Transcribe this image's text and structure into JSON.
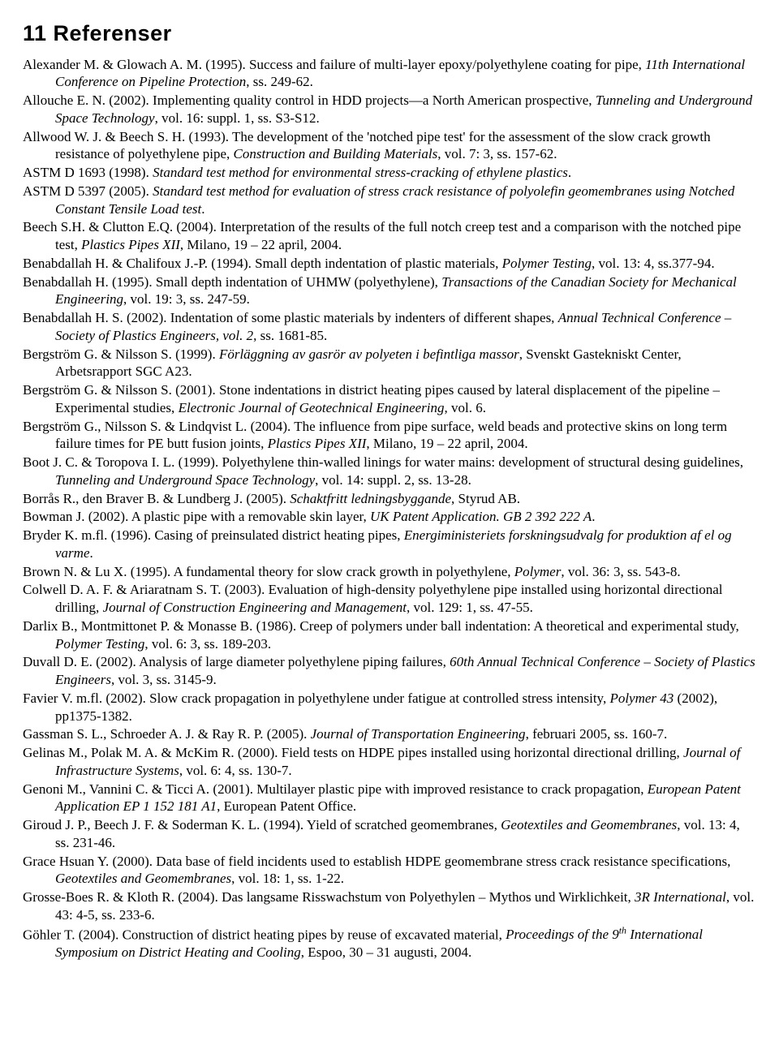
{
  "heading": "11  Referenser",
  "references": [
    {
      "html": "Alexander M. & Glowach A. M. (1995). Success and failure of multi-layer epoxy/polyethylene coating for pipe, <em>11th International Conference on Pipeline Protection</em>, ss. 249-62."
    },
    {
      "html": "Allouche E. N. (2002). Implementing quality control in HDD projects—a North American prospective, <em>Tunneling and Underground Space Technology</em>, vol. 16: suppl. 1, ss. S3-S12."
    },
    {
      "html": "Allwood W. J. & Beech S. H. (1993). The development of the 'notched pipe test' for the assessment of the slow crack growth resistance of polyethylene pipe, <em>Construction and Building Materials</em>, vol. 7: 3, ss. 157-62."
    },
    {
      "html": "ASTM D 1693 (1998). <em>Standard test method for environmental stress-cracking of ethylene plastics</em>."
    },
    {
      "html": "ASTM D 5397 (2005). <em>Standard test method for evaluation of stress crack resistance of polyolefin geomembranes using Notched Constant Tensile Load test</em>."
    },
    {
      "html": "Beech S.H. & Clutton E.Q. (2004). Interpretation of the results of the full notch creep test and a comparison with the notched pipe test, <em>Plastics Pipes XII</em>, Milano, 19 – 22 april, 2004."
    },
    {
      "html": "Benabdallah H. & Chalifoux J.-P. (1994). Small depth indentation of plastic materials, <em>Polymer Testing</em>, vol. 13: 4, ss.377-94."
    },
    {
      "html": "Benabdallah H. (1995). Small depth indentation of UHMW (polyethylene), <em>Transactions of the Canadian Society for Mechanical Engineering</em>, vol. 19: 3, ss. 247-59."
    },
    {
      "html": "Benabdallah H. S. (2002). Indentation of some plastic materials by indenters of different shapes, <em>Annual Technical Conference – Society of Plastics Engineers, vol. 2</em>, ss. 1681-85."
    },
    {
      "html": "Bergström G. & Nilsson S. (1999). <em>Förläggning av gasrör av polyeten i befintliga massor</em>, Svenskt Gastekniskt Center, Arbetsrapport SGC A23."
    },
    {
      "html": "Bergström G. & Nilsson S. (2001). Stone indentations in district heating pipes caused by lateral displacement of the pipeline – Experimental studies, <em>Electronic Journal of Geotechnical Engineering</em>, vol. 6."
    },
    {
      "html": "Bergström G., Nilsson S. & Lindqvist L. (2004). The influence from pipe surface, weld beads and protective skins on long term failure times for PE butt fusion joints, <em>Plastics Pipes XII</em>, Milano, 19 – 22 april, 2004."
    },
    {
      "html": "Boot J. C. & Toropova I. L. (1999). Polyethylene thin-walled linings for water mains: development of structural desing guidelines, <em>Tunneling and Underground Space Technology</em>, vol. 14: suppl. 2, ss. 13-28."
    },
    {
      "html": "Borrås R., den Braver B. & Lundberg J. (2005). <em>Schaktfritt ledningsbyggande</em>, Styrud AB."
    },
    {
      "html": "Bowman J. (2002). A plastic pipe with a removable skin layer, <em>UK Patent Application. GB 2 392 222 A</em>."
    },
    {
      "html": "Bryder K. m.fl. (1996). Casing of preinsulated district heating pipes, <em>Energiministeriets forskningsudvalg for produktion af el og varme</em>."
    },
    {
      "html": "Brown N. & Lu X. (1995). A fundamental theory for slow crack growth in polyethylene, <em>Polymer</em>, vol. 36: 3, ss. 543-8."
    },
    {
      "html": "Colwell D. A. F. & Ariaratnam S. T. (2003). Evaluation of high-density polyethylene pipe installed using horizontal directional drilling, <em>Journal of Construction Engineering and Management</em>, vol. 129: 1, ss. 47-55."
    },
    {
      "html": "Darlix B., Montmittonet P. & Monasse B. (1986). Creep of polymers under ball indentation: A theoretical and experimental study, <em>Polymer Testing</em>, vol. 6: 3, ss. 189-203."
    },
    {
      "html": "Duvall D. E. (2002). Analysis of large diameter polyethylene piping failures, <em>60th Annual Technical Conference – Society of Plastics Engineers</em>, vol. 3, ss. 3145-9."
    },
    {
      "html": "Favier V. m.fl. (2002). Slow crack propagation in polyethylene under fatigue at controlled stress intensity, <em>Polymer 43</em> (2002), pp1375-1382."
    },
    {
      "html": "Gassman S. L., Schroeder A. J. & Ray R. P. (2005). <em>Journal of Transportation Engineering</em>, februari 2005, ss. 160-7."
    },
    {
      "html": "Gelinas M., Polak M. A. & McKim R. (2000). Field tests on HDPE pipes installed using horizontal directional drilling, <em>Journal of Infrastructure Systems</em>, vol. 6: 4, ss. 130-7."
    },
    {
      "html": "Genoni M., Vannini C. & Ticci A. (2001). Multilayer plastic pipe with improved resistance to crack propagation, <em>European Patent Application EP 1 152 181 A1</em>, European Patent Office."
    },
    {
      "html": "Giroud J. P., Beech J. F. & Soderman K. L. (1994). Yield of scratched geomembranes, <em>Geotextiles and Geomembranes</em>, vol. 13: 4, ss. 231-46."
    },
    {
      "html": "Grace Hsuan Y. (2000). Data base of field incidents used to establish HDPE geomembrane stress crack resistance specifications, <em>Geotextiles and Geomembranes</em>, vol. 18: 1, ss. 1-22."
    },
    {
      "html": "Grosse-Boes R. & Kloth R. (2004). Das langsame Risswachstum von Polyethylen – Mythos und Wirklichkeit, <em>3R International</em>, vol. 43: 4-5, ss. 233-6."
    },
    {
      "html": "Göhler T. (2004). Construction of district heating pipes by reuse of excavated material, <em>Proceedings of the 9<sup>th</sup> International Symposium on District Heating and Cooling</em>, Espoo, 30 – 31 augusti, 2004."
    }
  ]
}
